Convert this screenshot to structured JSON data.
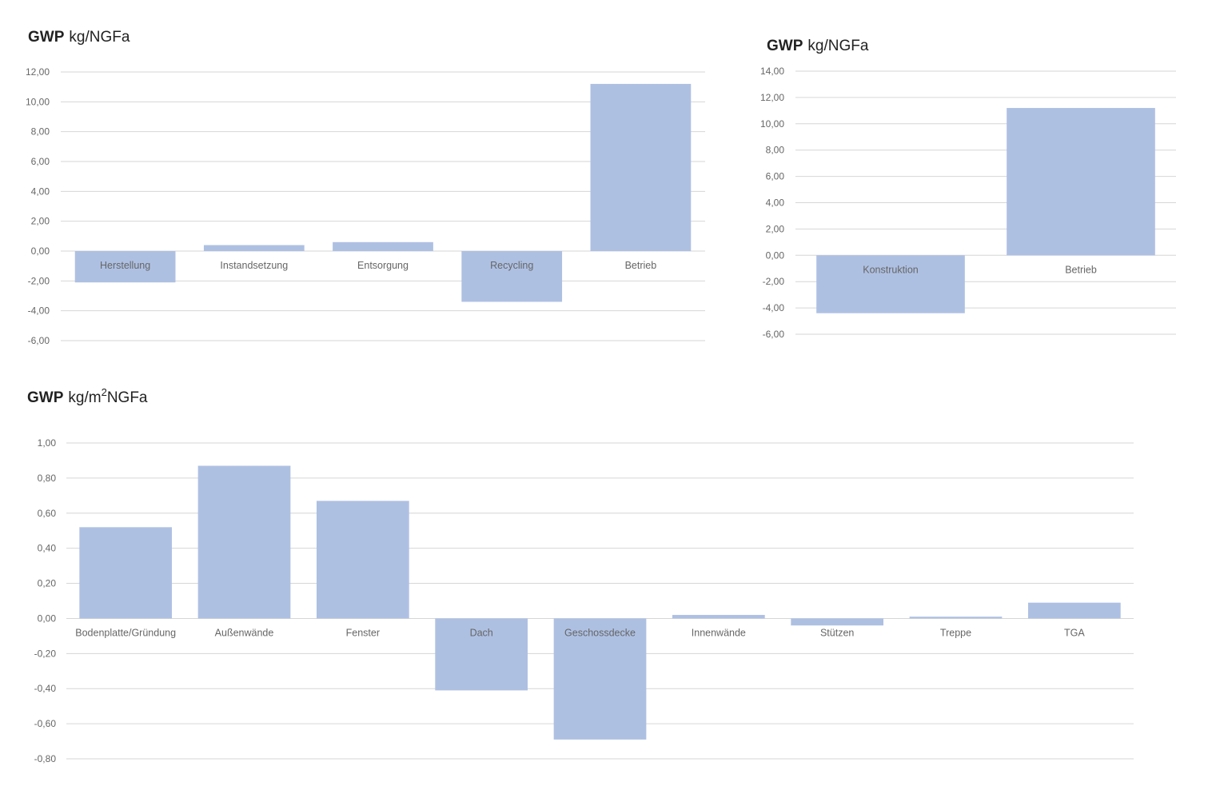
{
  "colors": {
    "bar": "#aec0e2",
    "grid": "#d6d6d6",
    "tick_text": "#666666",
    "title_text": "#222222"
  },
  "chart_data": [
    {
      "type": "bar",
      "title_bold": "GWP",
      "title_unit": "kg/NGFa",
      "title_sup": "",
      "title_unit_after": "",
      "categories": [
        "Herstellung",
        "Instandsetzung",
        "Entsorgung",
        "Recycling",
        "Betrieb"
      ],
      "values": [
        -2.1,
        0.4,
        0.6,
        -3.4,
        11.2
      ],
      "ylim": [
        -6,
        12
      ],
      "yticks": [
        "12,00",
        "10,00",
        "8,00",
        "6,00",
        "4,00",
        "2,00",
        "0,00",
        "-2,00",
        "-4,00",
        "-6,00"
      ],
      "grid": true
    },
    {
      "type": "bar",
      "title_bold": "GWP",
      "title_unit": "kg/NGFa",
      "title_sup": "",
      "title_unit_after": "",
      "categories": [
        "Konstruktion",
        "Betrieb"
      ],
      "values": [
        -4.4,
        11.2
      ],
      "ylim": [
        -6,
        14
      ],
      "yticks": [
        "14,00",
        "12,00",
        "10,00",
        "8,00",
        "6,00",
        "4,00",
        "2,00",
        "0,00",
        "-2,00",
        "-4,00",
        "-6,00"
      ],
      "grid": true
    },
    {
      "type": "bar",
      "title_bold": "GWP",
      "title_unit": "kg/m",
      "title_sup": "2",
      "title_unit_after": "NGFa",
      "categories": [
        "Bodenplatte/Gründung",
        "Außenwände",
        "Fenster",
        "Dach",
        "Geschossdecke",
        "Innenwände",
        "Stützen",
        "Treppe",
        "TGA"
      ],
      "values": [
        0.52,
        0.87,
        0.67,
        -0.41,
        -0.69,
        0.02,
        -0.04,
        0.01,
        0.09
      ],
      "ylim": [
        -0.8,
        1.0
      ],
      "yticks": [
        "1,00",
        "0,80",
        "0,60",
        "0,40",
        "0,20",
        "0,00",
        "-0,20",
        "-0,40",
        "-0,60",
        "-0,80"
      ],
      "grid": true
    }
  ]
}
